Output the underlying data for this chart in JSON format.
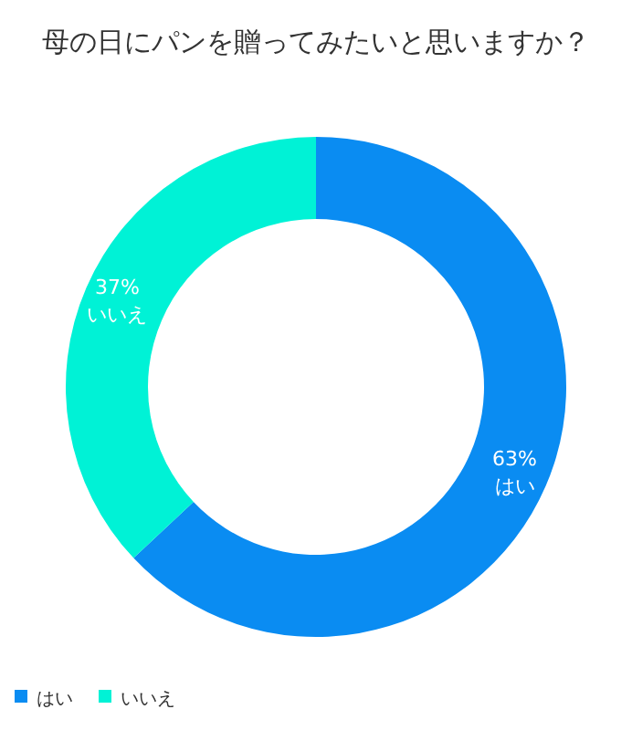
{
  "chart_data": {
    "type": "donut",
    "title": "母の日にパンを贈ってみたいと思いますか？",
    "categories": [
      "はい",
      "いいえ"
    ],
    "values": [
      63,
      37
    ],
    "colors": [
      "#0a8cf2",
      "#00f2d6"
    ],
    "value_labels": [
      "63%",
      "37%"
    ],
    "legend": "bottom"
  }
}
